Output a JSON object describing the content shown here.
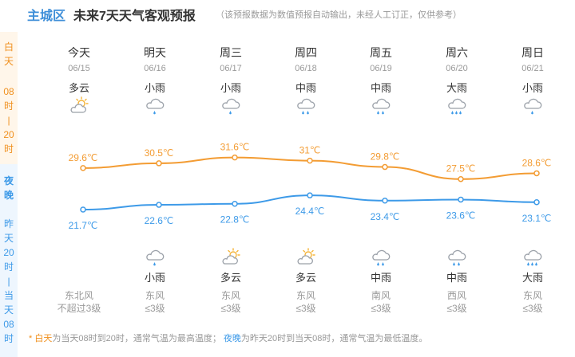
{
  "header": {
    "region": "主城区",
    "title": "未来7天天气客观预报",
    "note": "（该预报数据为数值预报自动输出，未经人工订正，仅供参考）"
  },
  "side": {
    "day_label": "白\n天",
    "day_time": "08\n时\n|\n20\n时",
    "night_label": "夜\n晚",
    "night_time": "昨\n天\n20\n时\n|\n当\n天\n08\n时"
  },
  "days": [
    {
      "name": "今天",
      "date": "06/15",
      "day_weather": "多云",
      "day_icon": "partly-cloudy-icon",
      "night_weather": "",
      "night_icon": "",
      "wind_dir": "东北风",
      "wind_level": "不超过3级"
    },
    {
      "name": "明天",
      "date": "06/16",
      "day_weather": "小雨",
      "day_icon": "light-rain-icon",
      "night_weather": "小雨",
      "night_icon": "light-rain-icon",
      "wind_dir": "东风",
      "wind_level": "≤3级"
    },
    {
      "name": "周三",
      "date": "06/17",
      "day_weather": "小雨",
      "day_icon": "light-rain-icon",
      "night_weather": "多云",
      "night_icon": "partly-cloudy-icon",
      "wind_dir": "东风",
      "wind_level": "≤3级"
    },
    {
      "name": "周四",
      "date": "06/18",
      "day_weather": "中雨",
      "day_icon": "moderate-rain-icon",
      "night_weather": "多云",
      "night_icon": "partly-cloudy-icon",
      "wind_dir": "东风",
      "wind_level": "≤3级"
    },
    {
      "name": "周五",
      "date": "06/19",
      "day_weather": "中雨",
      "day_icon": "moderate-rain-icon",
      "night_weather": "中雨",
      "night_icon": "moderate-rain-icon",
      "wind_dir": "南风",
      "wind_level": "≤3级"
    },
    {
      "name": "周六",
      "date": "06/20",
      "day_weather": "大雨",
      "day_icon": "heavy-rain-icon",
      "night_weather": "中雨",
      "night_icon": "moderate-rain-icon",
      "wind_dir": "西风",
      "wind_level": "≤3级"
    },
    {
      "name": "周日",
      "date": "06/21",
      "day_weather": "小雨",
      "day_icon": "light-rain-icon",
      "night_weather": "大雨",
      "night_icon": "heavy-rain-icon",
      "wind_dir": "东风",
      "wind_level": "≤3级"
    }
  ],
  "chart_data": {
    "type": "line",
    "categories": [
      "06/15",
      "06/16",
      "06/17",
      "06/18",
      "06/19",
      "06/20",
      "06/21"
    ],
    "series": [
      {
        "values": [
          29.6,
          30.5,
          31.6,
          31,
          29.8,
          27.5,
          28.6
        ],
        "labels": [
          "29.6℃",
          "30.5℃",
          "31.6℃",
          "31℃",
          "29.8℃",
          "27.5℃",
          "28.6℃"
        ],
        "color": "#f39c33"
      },
      {
        "values": [
          21.7,
          22.6,
          22.8,
          24.4,
          23.4,
          23.6,
          23.1
        ],
        "labels": [
          "21.7℃",
          "22.6℃",
          "22.8℃",
          "24.4℃",
          "23.4℃",
          "23.6℃",
          "23.1℃"
        ],
        "color": "#3d9ae8"
      }
    ]
  },
  "footnote": {
    "star": "* ",
    "day_key": "白天",
    "day_text": "为当天08时到20时，通常气温为最高温度；",
    "night_key": "夜晚",
    "night_text": "为昨天20时到当天08时，通常气温为最低温度。"
  },
  "colors": {
    "day_accent": "#f39c33",
    "night_accent": "#3d9ae8"
  }
}
